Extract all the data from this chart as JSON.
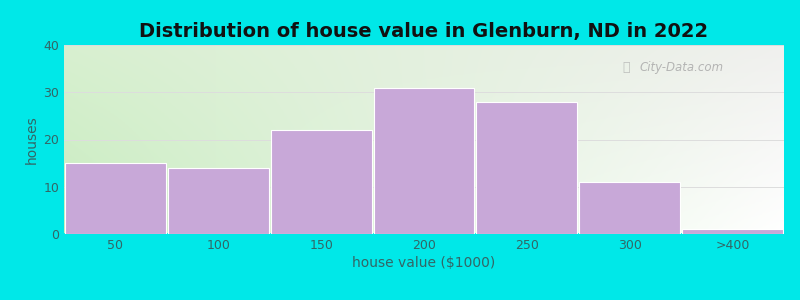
{
  "title": "Distribution of house value in Glenburn, ND in 2022",
  "xlabel": "house value ($1000)",
  "ylabel": "houses",
  "categories": [
    "50",
    "100",
    "150",
    "200",
    "250",
    "300",
    ">400"
  ],
  "values": [
    15,
    14,
    22,
    31,
    28,
    11,
    1
  ],
  "bar_color": "#c8a8d8",
  "bar_edgecolor": "#ffffff",
  "background_outer": "#00e8e8",
  "background_tl": "#d8f0d0",
  "background_tr": "#f0f0ee",
  "background_bl": "#c8ecc0",
  "background_br": "#ffffff",
  "grid_color": "#dddddd",
  "text_color": "#336666",
  "title_color": "#111111",
  "ylim": [
    0,
    40
  ],
  "yticks": [
    0,
    10,
    20,
    30,
    40
  ],
  "title_fontsize": 14,
  "label_fontsize": 10,
  "tick_fontsize": 9,
  "watermark": "City-Data.com",
  "fig_width": 8.0,
  "fig_height": 3.0,
  "dpi": 100
}
